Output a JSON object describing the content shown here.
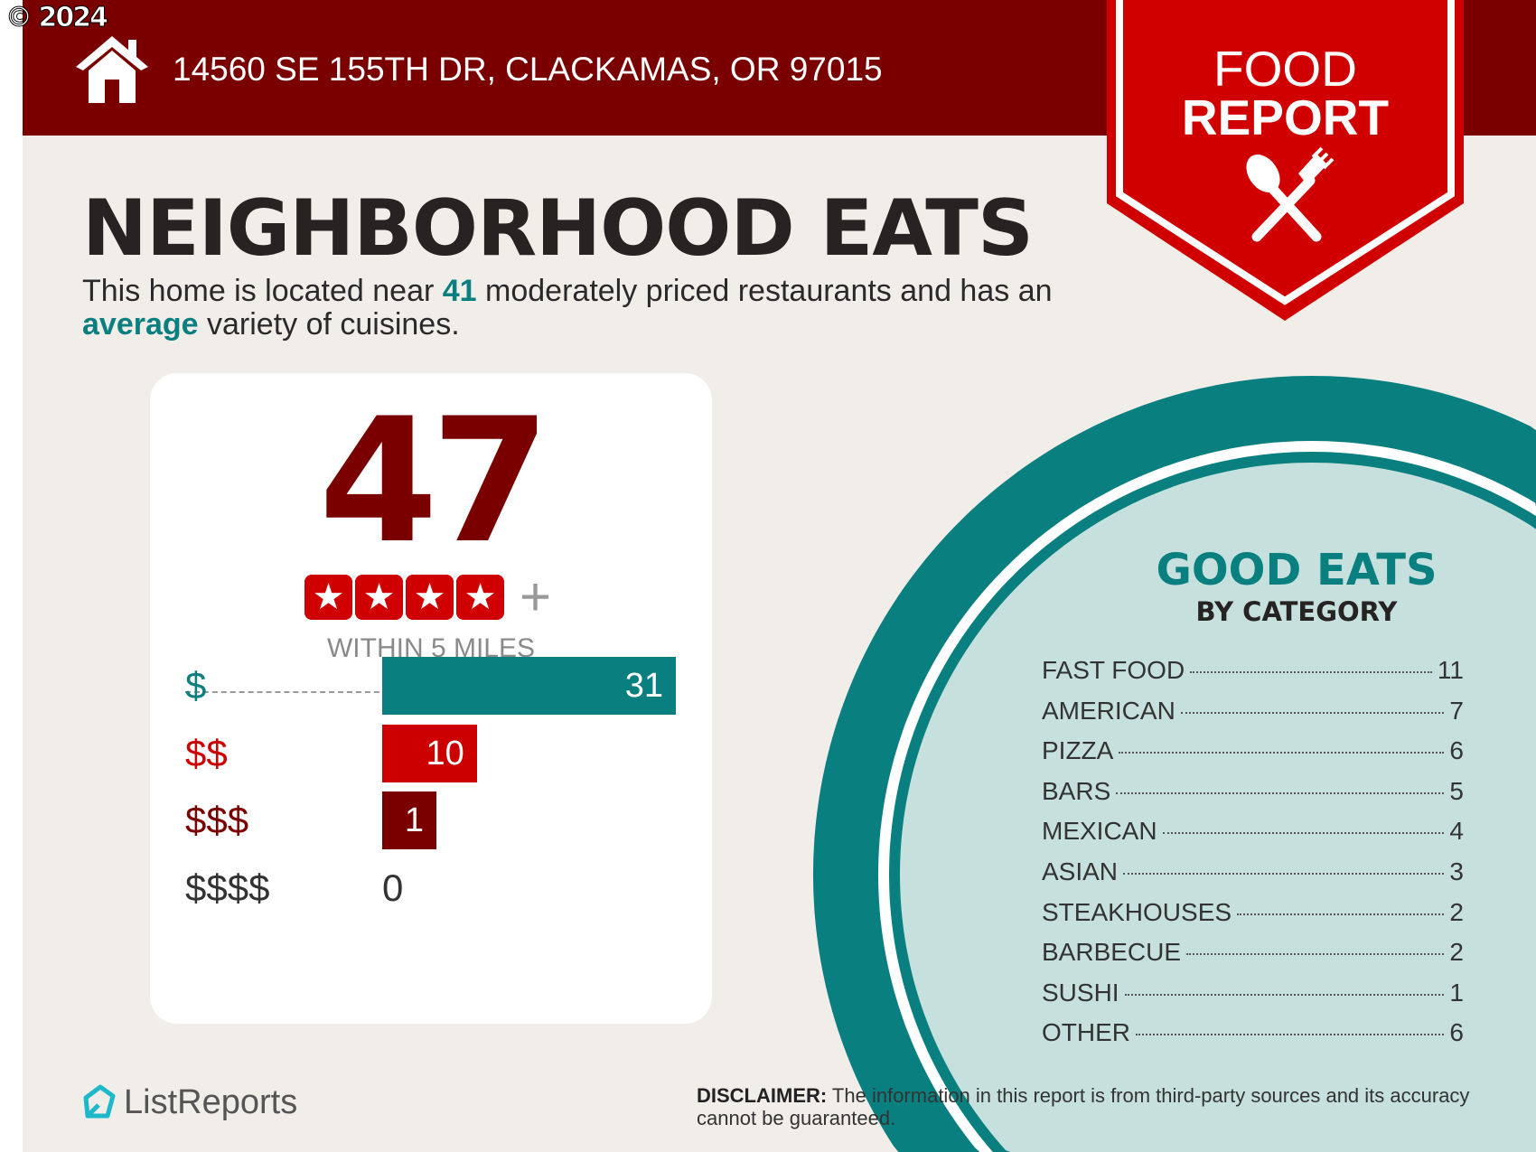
{
  "copyright": "© 2024",
  "header": {
    "address": "14560 SE 155TH DR, CLACKAMAS, OR 97015",
    "badge_line1": "FOOD",
    "badge_line2": "REPORT"
  },
  "title": "NEIGHBORHOOD EATS",
  "description": {
    "part1": "This home is located near ",
    "count": "41",
    "part2": " moderately priced restaurants and has an ",
    "variety": "average",
    "part3": " variety of cuisines."
  },
  "card": {
    "total": "47",
    "stars": 4,
    "plus": "+",
    "radius_label": "WITHIN 5 MILES",
    "prices": [
      {
        "label": "$",
        "value": 31,
        "color": "#0a7f80"
      },
      {
        "label": "$$",
        "value": 10,
        "color": "#cc0000"
      },
      {
        "label": "$$$",
        "value": 1,
        "color": "#7a0000"
      },
      {
        "label": "$$$$",
        "value": 0,
        "color": "#333333"
      }
    ]
  },
  "categories": {
    "title": "GOOD EATS",
    "subtitle": "BY CATEGORY",
    "items": [
      {
        "name": "FAST FOOD",
        "count": "11"
      },
      {
        "name": "AMERICAN",
        "count": "7"
      },
      {
        "name": "PIZZA",
        "count": "6"
      },
      {
        "name": "BARS",
        "count": "5"
      },
      {
        "name": "MEXICAN",
        "count": "4"
      },
      {
        "name": "ASIAN",
        "count": "3"
      },
      {
        "name": "STEAKHOUSES",
        "count": "2"
      },
      {
        "name": "BARBECUE",
        "count": "2"
      },
      {
        "name": "SUSHI",
        "count": "1"
      },
      {
        "name": "OTHER",
        "count": "6"
      }
    ]
  },
  "logo": "ListReports",
  "disclaimer": {
    "label": "DISCLAIMER:",
    "text": " The information in this report is from third-party sources and its accuracy cannot be guaranteed."
  },
  "colors": {
    "header": "#7a0000",
    "badge": "#d10000",
    "teal": "#0a7f80",
    "light_teal": "#c6e0de",
    "background": "#f1ede9"
  }
}
